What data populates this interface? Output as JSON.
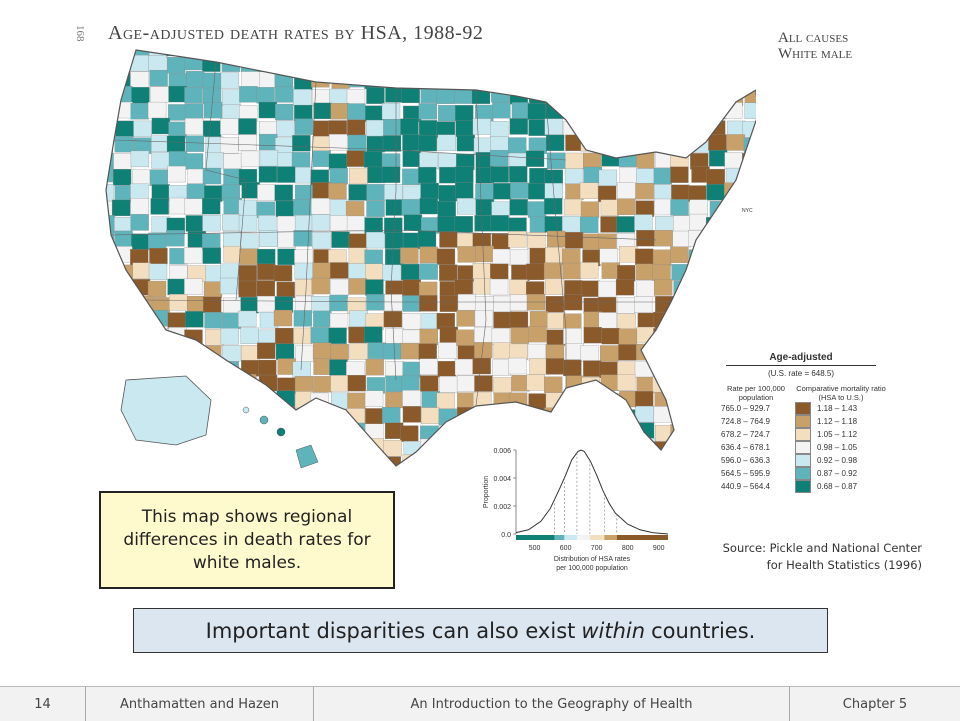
{
  "page_number_vertical": "168",
  "map": {
    "title": "Age-adjusted death rates by HSA, 1988-92",
    "subtitle_line1": "All causes",
    "subtitle_line2": "White male",
    "nyc_label": "NYC"
  },
  "legend": {
    "title": "Age-adjusted",
    "us_rate": "(U.S. rate = 648.5)",
    "col1_head": "Rate per 100,000 population",
    "col2_head": "Comparative mortality ratio (HSA to U.S.)",
    "rows": [
      {
        "range": "765.0 – 929.7",
        "ratio": "1.18 – 1.43",
        "color": "#8b5a2b"
      },
      {
        "range": "724.8 – 764.9",
        "ratio": "1.12 – 1.18",
        "color": "#c8a06a"
      },
      {
        "range": "678.2 – 724.7",
        "ratio": "1.05 – 1.12",
        "color": "#f3dfbf"
      },
      {
        "range": "636.4 – 678.1",
        "ratio": "0.98 – 1.05",
        "color": "#f3f3f3"
      },
      {
        "range": "596.0 – 636.3",
        "ratio": "0.92 – 0.98",
        "color": "#c9e8f0"
      },
      {
        "range": "564.5 – 595.9",
        "ratio": "0.87 – 0.92",
        "color": "#5fb4bb"
      },
      {
        "range": "440.9 – 564.4",
        "ratio": "0.68 – 0.87",
        "color": "#0e8075"
      }
    ]
  },
  "chart_data": {
    "type": "area",
    "xlabel": "Distribution of HSA rates per 100,000 population",
    "ylabel": "Proportion",
    "x_ticks": [
      "500",
      "600",
      "700",
      "800",
      "900"
    ],
    "y_ticks": [
      "0.0",
      "0.002",
      "0.004",
      "0.006"
    ],
    "xlim": [
      440,
      930
    ],
    "ylim": [
      0,
      0.006
    ],
    "x": [
      440,
      480,
      520,
      550,
      580,
      600,
      620,
      640,
      650,
      660,
      680,
      700,
      720,
      740,
      760,
      800,
      840,
      880,
      930
    ],
    "y": [
      0.0001,
      0.0003,
      0.0009,
      0.0018,
      0.0032,
      0.0042,
      0.0053,
      0.0059,
      0.006,
      0.0059,
      0.0052,
      0.0042,
      0.0031,
      0.0022,
      0.0015,
      0.0007,
      0.0003,
      0.0001,
      0.0
    ],
    "class_breaks": [
      564.5,
      596,
      636.4,
      678.2,
      724.8,
      765
    ]
  },
  "callout_text": "This map shows regional differences in death rates for white males.",
  "source_line1": "Source: Pickle and National Center",
  "source_line2": "for Health Statistics (1996)",
  "banner": {
    "before": "Important disparities can also exist",
    "emphasis": "within",
    "after": "countries."
  },
  "footer": {
    "page": "14",
    "authors": "Anthamatten and Hazen",
    "book": "An Introduction to the Geography of Health",
    "chapter": "Chapter 5"
  }
}
